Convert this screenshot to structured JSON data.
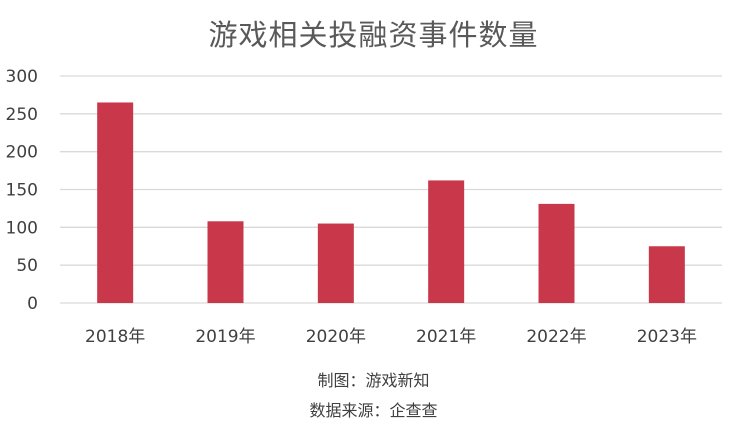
{
  "chart_data": {
    "type": "bar",
    "title": "游戏相关投融资事件数量",
    "categories": [
      "2018年",
      "2019年",
      "2020年",
      "2021年",
      "2022年",
      "2023年"
    ],
    "values": [
      265,
      108,
      105,
      162,
      131,
      75
    ],
    "xlabel": "",
    "ylabel": "",
    "ylim": [
      0,
      300
    ],
    "yticks": [
      "0",
      "50",
      "100",
      "150",
      "200",
      "250",
      "300"
    ],
    "grid": true,
    "legend": "none",
    "bar_color": "#c8384a",
    "grid_color": "#d9d9d9"
  },
  "credits": {
    "chart_by": "制图：游戏新知",
    "source": "数据来源：企查查"
  }
}
